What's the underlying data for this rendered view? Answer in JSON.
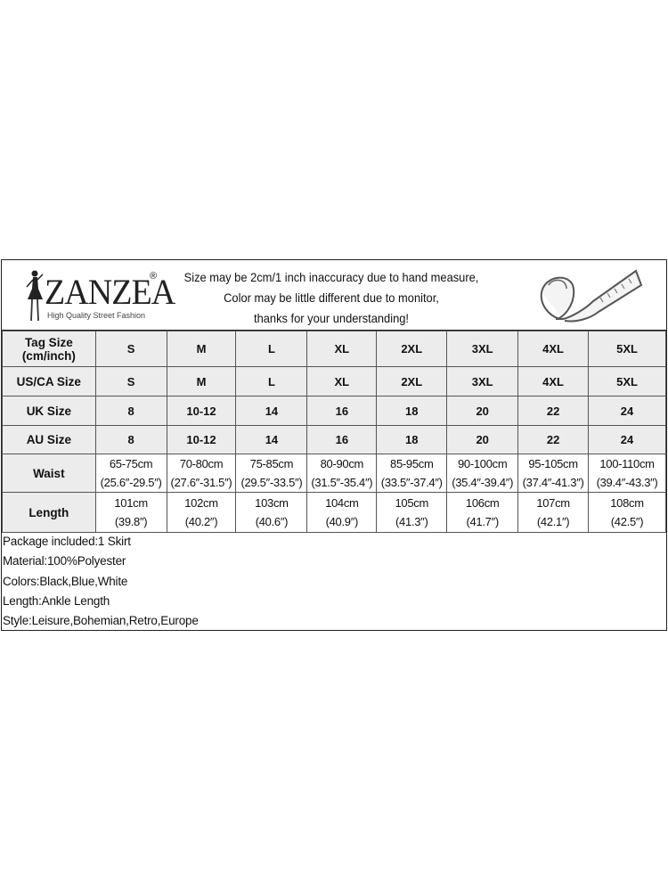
{
  "brand": {
    "name": "ZANZEA",
    "registered": "®",
    "tagline": "High Quality Street Fashion"
  },
  "notice": [
    "Size may be 2cm/1 inch inaccuracy due to hand measure,",
    "Color may be little different due to monitor,",
    "thanks for your understanding!"
  ],
  "icons": {
    "logo": "fashion-silhouette-icon",
    "tape": "measuring-tape-icon"
  },
  "table": {
    "rows": [
      {
        "label": "Tag Size\n(cm/inch)",
        "label1": "Tag Size",
        "label2": "(cm/inch)",
        "cells": [
          "S",
          "M",
          "L",
          "XL",
          "2XL",
          "3XL",
          "4XL",
          "5XL"
        ]
      },
      {
        "label": "US/CA Size",
        "cells": [
          "S",
          "M",
          "L",
          "XL",
          "2XL",
          "3XL",
          "4XL",
          "5XL"
        ]
      },
      {
        "label": "UK Size",
        "cells": [
          "8",
          "10-12",
          "14",
          "16",
          "18",
          "20",
          "22",
          "24"
        ]
      },
      {
        "label": "AU Size",
        "cells": [
          "8",
          "10-12",
          "14",
          "16",
          "18",
          "20",
          "22",
          "24"
        ]
      },
      {
        "label": "Waist",
        "cells": [
          [
            "65-75cm",
            "(25.6″-29.5″)"
          ],
          [
            "70-80cm",
            "(27.6″-31.5″)"
          ],
          [
            "75-85cm",
            "(29.5″-33.5″)"
          ],
          [
            "80-90cm",
            "(31.5″-35.4″)"
          ],
          [
            "85-95cm",
            "(33.5″-37.4″)"
          ],
          [
            "90-100cm",
            "(35.4″-39.4″)"
          ],
          [
            "95-105cm",
            "(37.4″-41.3″)"
          ],
          [
            "100-110cm",
            "(39.4″-43.3″)"
          ]
        ]
      },
      {
        "label": "Length",
        "cells": [
          [
            "101cm",
            "(39.8″)"
          ],
          [
            "102cm",
            "(40.2″)"
          ],
          [
            "103cm",
            "(40.6″)"
          ],
          [
            "104cm",
            "(40.9″)"
          ],
          [
            "105cm",
            "(41.3″)"
          ],
          [
            "106cm",
            "(41.7″)"
          ],
          [
            "107cm",
            "(42.1″)"
          ],
          [
            "108cm",
            "(42.5″)"
          ]
        ]
      }
    ]
  },
  "info": [
    "Package included:1 Skirt",
    "Material:100%Polyester",
    "Colors:Black,Blue,White",
    "Length:Ankle Length",
    "Style:Leisure,Bohemian,Retro,Europe"
  ]
}
